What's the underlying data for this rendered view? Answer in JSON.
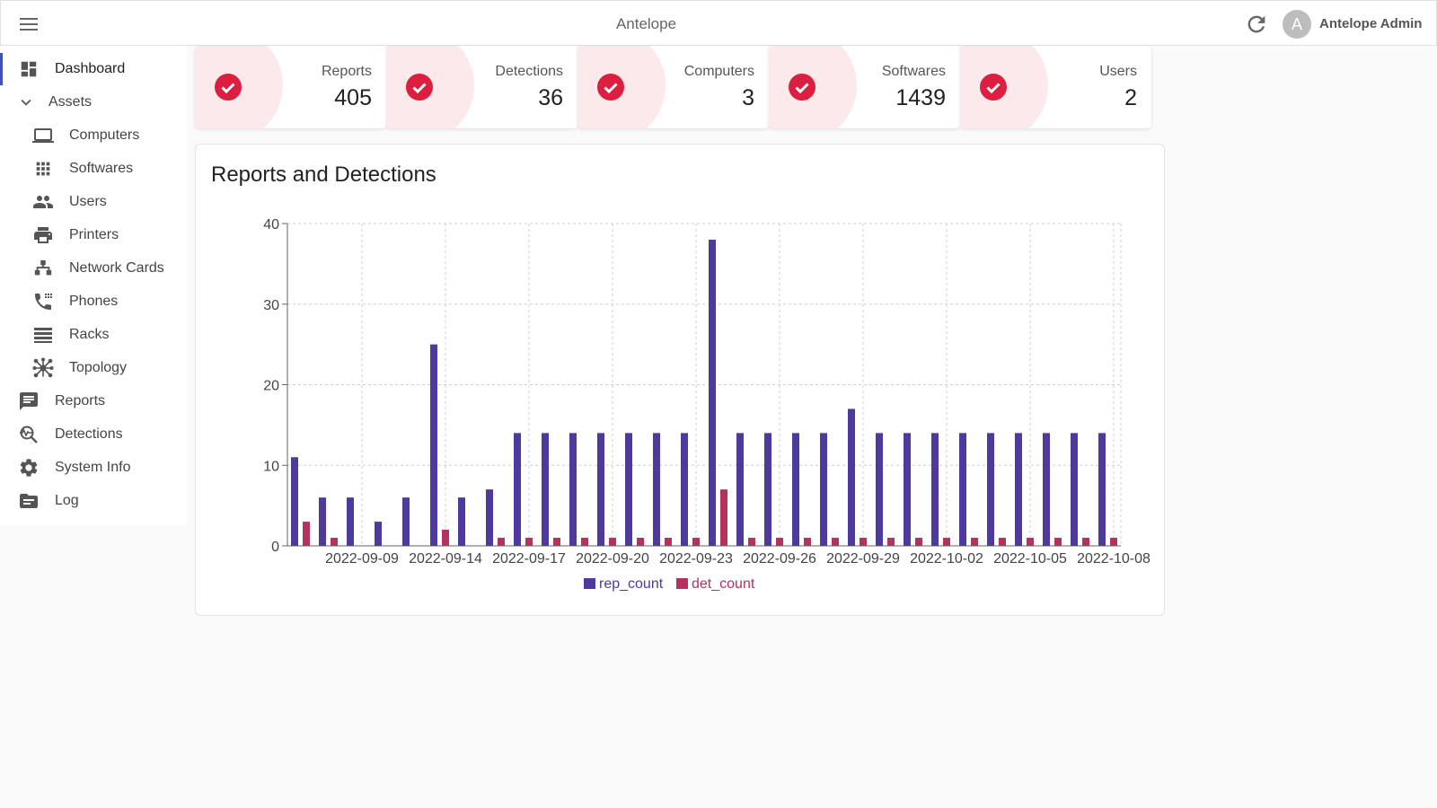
{
  "app": {
    "title": "Antelope",
    "user_initial": "A",
    "user_name": "Antelope Admin"
  },
  "sidebar": {
    "items": [
      {
        "label": "Dashboard",
        "icon": "dashboard-icon",
        "active": true
      },
      {
        "label": "Assets",
        "icon": "chevron-down-icon"
      },
      {
        "label": "Computers",
        "icon": "laptop-icon"
      },
      {
        "label": "Softwares",
        "icon": "apps-grid-icon"
      },
      {
        "label": "Users",
        "icon": "people-icon"
      },
      {
        "label": "Printers",
        "icon": "printer-icon"
      },
      {
        "label": "Network Cards",
        "icon": "network-icon"
      },
      {
        "label": "Phones",
        "icon": "phone-icon"
      },
      {
        "label": "Racks",
        "icon": "list-icon"
      },
      {
        "label": "Topology",
        "icon": "topology-icon"
      },
      {
        "label": "Reports",
        "icon": "message-icon"
      },
      {
        "label": "Detections",
        "icon": "search-analytics-icon"
      },
      {
        "label": "System Info",
        "icon": "gear-icon"
      },
      {
        "label": "Log",
        "icon": "folder-icon"
      }
    ]
  },
  "stats": [
    {
      "label": "Reports",
      "value": "405"
    },
    {
      "label": "Detections",
      "value": "36"
    },
    {
      "label": "Computers",
      "value": "3"
    },
    {
      "label": "Softwares",
      "value": "1439"
    },
    {
      "label": "Users",
      "value": "2"
    }
  ],
  "colors": {
    "accent": "#dc1f40",
    "rep_count": "#4e3a9c",
    "det_count": "#b5315f",
    "active_indicator": "#3f51b5"
  },
  "chart": {
    "title": "Reports and Detections"
  },
  "chart_data": {
    "type": "bar",
    "title": "Reports and Detections",
    "xlabel": "",
    "ylabel": "",
    "ylim": [
      0,
      40
    ],
    "yticks": [
      0,
      10,
      20,
      30,
      40
    ],
    "xticks": [
      "2022-09-09",
      "2022-09-14",
      "2022-09-17",
      "2022-09-20",
      "2022-09-23",
      "2022-09-26",
      "2022-09-29",
      "2022-10-02",
      "2022-10-05",
      "2022-10-08"
    ],
    "grid": true,
    "legend": "bottom-center",
    "series": [
      {
        "name": "rep_count",
        "values": [
          11,
          6,
          6,
          3,
          6,
          25,
          6,
          7,
          14,
          14,
          14,
          14,
          14,
          14,
          14,
          38,
          14,
          14,
          14,
          14,
          17,
          14,
          14,
          14,
          14,
          14,
          14,
          14,
          14,
          14
        ]
      },
      {
        "name": "det_count",
        "values": [
          3,
          1,
          0,
          0,
          0,
          2,
          0,
          1,
          1,
          1,
          1,
          1,
          1,
          1,
          1,
          7,
          1,
          1,
          1,
          1,
          1,
          1,
          1,
          1,
          1,
          1,
          1,
          1,
          1,
          1
        ]
      }
    ]
  }
}
